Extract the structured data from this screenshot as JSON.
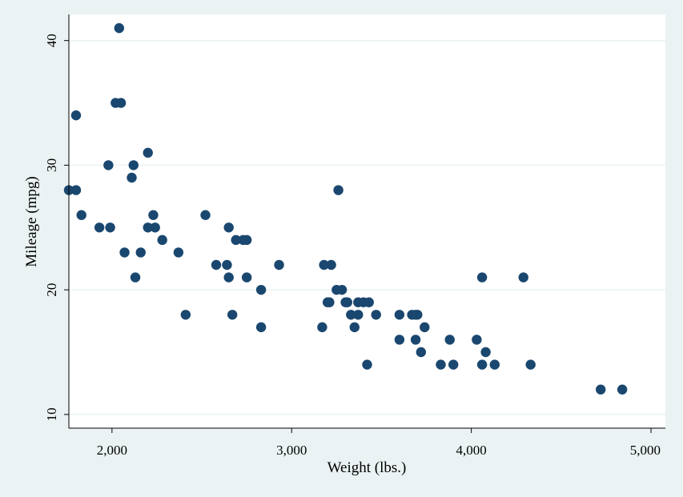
{
  "chart_data": {
    "type": "scatter",
    "title": "",
    "xlabel": "Weight (lbs.)",
    "ylabel": "Mileage (mpg)",
    "xlim": [
      1760,
      5080
    ],
    "ylim": [
      8.9,
      42.1
    ],
    "x_ticks": [
      2000,
      3000,
      4000,
      5000
    ],
    "x_tick_labels": [
      "2,000",
      "3,000",
      "4,000",
      "5,000"
    ],
    "y_ticks": [
      10,
      20,
      30,
      40
    ],
    "y_tick_labels": [
      "10",
      "20",
      "30",
      "40"
    ],
    "grid": "horizontal",
    "legend": "none",
    "colors": {
      "background": "#eaf2f3",
      "plot_area": "#ffffff",
      "marker": "#1a476f",
      "gridline": "#eaf2f3"
    },
    "series": [
      {
        "points": [
          [
            1760,
            28
          ],
          [
            1800,
            28
          ],
          [
            1800,
            34
          ],
          [
            1830,
            26
          ],
          [
            1930,
            25
          ],
          [
            1980,
            30
          ],
          [
            1990,
            25
          ],
          [
            2020,
            35
          ],
          [
            2040,
            41
          ],
          [
            2050,
            35
          ],
          [
            2070,
            23
          ],
          [
            2110,
            29
          ],
          [
            2120,
            30
          ],
          [
            2130,
            21
          ],
          [
            2160,
            23
          ],
          [
            2200,
            31
          ],
          [
            2200,
            25
          ],
          [
            2230,
            26
          ],
          [
            2240,
            25
          ],
          [
            2280,
            24
          ],
          [
            2370,
            23
          ],
          [
            2410,
            18
          ],
          [
            2520,
            26
          ],
          [
            2580,
            22
          ],
          [
            2640,
            22
          ],
          [
            2650,
            21
          ],
          [
            2650,
            25
          ],
          [
            2670,
            18
          ],
          [
            2690,
            24
          ],
          [
            2730,
            24
          ],
          [
            2750,
            24
          ],
          [
            2750,
            21
          ],
          [
            2830,
            20
          ],
          [
            2830,
            17
          ],
          [
            2930,
            22
          ],
          [
            3170,
            17
          ],
          [
            3180,
            22
          ],
          [
            3200,
            19
          ],
          [
            3210,
            19
          ],
          [
            3220,
            22
          ],
          [
            3250,
            20
          ],
          [
            3260,
            28
          ],
          [
            3280,
            20
          ],
          [
            3300,
            19
          ],
          [
            3310,
            19
          ],
          [
            3330,
            18
          ],
          [
            3350,
            17
          ],
          [
            3370,
            19
          ],
          [
            3370,
            18
          ],
          [
            3400,
            19
          ],
          [
            3420,
            14
          ],
          [
            3430,
            19
          ],
          [
            3470,
            18
          ],
          [
            3600,
            18
          ],
          [
            3600,
            16
          ],
          [
            3670,
            18
          ],
          [
            3690,
            18
          ],
          [
            3690,
            16
          ],
          [
            3700,
            18
          ],
          [
            3720,
            15
          ],
          [
            3740,
            17
          ],
          [
            3830,
            14
          ],
          [
            3880,
            16
          ],
          [
            3900,
            14
          ],
          [
            4030,
            16
          ],
          [
            4060,
            21
          ],
          [
            4060,
            14
          ],
          [
            4080,
            15
          ],
          [
            4130,
            14
          ],
          [
            4290,
            21
          ],
          [
            4330,
            14
          ],
          [
            4720,
            12
          ],
          [
            4840,
            12
          ]
        ]
      }
    ]
  }
}
